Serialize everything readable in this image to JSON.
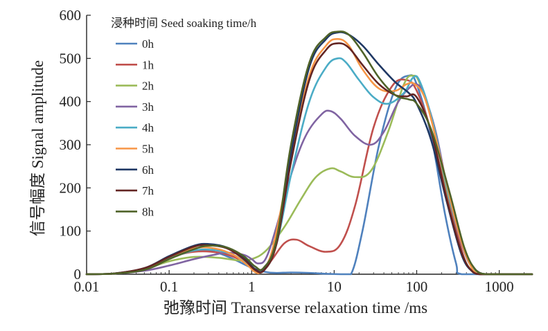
{
  "chart_data": {
    "type": "line",
    "xscale": "log",
    "xlim": [
      0.01,
      2500
    ],
    "ylim": [
      0,
      600
    ],
    "xlabel": "弛豫时间 Transverse relaxation time /ms",
    "ylabel": "信号幅度 Signal amplitude",
    "xticks": [
      0.01,
      0.1,
      1,
      10,
      100,
      1000
    ],
    "xtick_labels": [
      "0.01",
      "0.1",
      "1",
      "10",
      "100",
      "1000"
    ],
    "yticks": [
      0,
      100,
      200,
      300,
      400,
      500,
      600
    ],
    "ytick_labels": [
      "0",
      "100",
      "200",
      "300",
      "400",
      "500",
      "600"
    ],
    "legend_title": "浸种时间 Seed soaking time/h",
    "legend_position": "top-left",
    "grid": false,
    "series": [
      {
        "name": "0h",
        "color": "#4f81bd",
        "points": [
          [
            0.01,
            0
          ],
          [
            0.02,
            1
          ],
          [
            0.05,
            12
          ],
          [
            0.1,
            38
          ],
          [
            0.2,
            55
          ],
          [
            0.35,
            52
          ],
          [
            0.6,
            35
          ],
          [
            1,
            15
          ],
          [
            1.5,
            5
          ],
          [
            2,
            3
          ],
          [
            3,
            4
          ],
          [
            5,
            3
          ],
          [
            8,
            1
          ],
          [
            12,
            0
          ],
          [
            16,
            0
          ],
          [
            22,
            100
          ],
          [
            35,
            300
          ],
          [
            55,
            430
          ],
          [
            80,
            460
          ],
          [
            100,
            440
          ],
          [
            150,
            320
          ],
          [
            220,
            140
          ],
          [
            300,
            25
          ],
          [
            350,
            0
          ],
          [
            1000,
            0
          ],
          [
            2500,
            0
          ]
        ]
      },
      {
        "name": "1h",
        "color": "#c0504d",
        "points": [
          [
            0.01,
            0
          ],
          [
            0.02,
            1
          ],
          [
            0.05,
            12
          ],
          [
            0.1,
            38
          ],
          [
            0.2,
            52
          ],
          [
            0.4,
            50
          ],
          [
            0.7,
            35
          ],
          [
            1,
            15
          ],
          [
            1.3,
            10
          ],
          [
            1.7,
            30
          ],
          [
            2.5,
            72
          ],
          [
            3.5,
            80
          ],
          [
            5,
            65
          ],
          [
            8,
            52
          ],
          [
            12,
            70
          ],
          [
            18,
            160
          ],
          [
            30,
            340
          ],
          [
            50,
            435
          ],
          [
            75,
            450
          ],
          [
            100,
            425
          ],
          [
            150,
            330
          ],
          [
            250,
            160
          ],
          [
            380,
            35
          ],
          [
            500,
            5
          ],
          [
            600,
            0
          ],
          [
            1000,
            0
          ],
          [
            2500,
            0
          ]
        ]
      },
      {
        "name": "2h",
        "color": "#9bbb59",
        "points": [
          [
            0.01,
            0
          ],
          [
            0.02,
            1
          ],
          [
            0.05,
            12
          ],
          [
            0.1,
            30
          ],
          [
            0.2,
            40
          ],
          [
            0.4,
            38
          ],
          [
            0.7,
            32
          ],
          [
            1,
            35
          ],
          [
            1.5,
            55
          ],
          [
            2.5,
            110
          ],
          [
            4,
            175
          ],
          [
            6,
            225
          ],
          [
            9,
            245
          ],
          [
            12,
            238
          ],
          [
            18,
            225
          ],
          [
            28,
            240
          ],
          [
            45,
            330
          ],
          [
            70,
            440
          ],
          [
            90,
            460
          ],
          [
            110,
            440
          ],
          [
            160,
            340
          ],
          [
            250,
            170
          ],
          [
            400,
            40
          ],
          [
            550,
            5
          ],
          [
            700,
            0
          ],
          [
            1000,
            0
          ],
          [
            2500,
            0
          ]
        ]
      },
      {
        "name": "3h",
        "color": "#8064a2",
        "points": [
          [
            0.01,
            0
          ],
          [
            0.02,
            1
          ],
          [
            0.05,
            8
          ],
          [
            0.1,
            20
          ],
          [
            0.2,
            35
          ],
          [
            0.35,
            45
          ],
          [
            0.5,
            50
          ],
          [
            0.8,
            45
          ],
          [
            1,
            35
          ],
          [
            1.2,
            25
          ],
          [
            1.5,
            38
          ],
          [
            2,
            110
          ],
          [
            3,
            230
          ],
          [
            4.5,
            320
          ],
          [
            7,
            370
          ],
          [
            9,
            378
          ],
          [
            12,
            360
          ],
          [
            18,
            320
          ],
          [
            28,
            300
          ],
          [
            40,
            330
          ],
          [
            60,
            400
          ],
          [
            85,
            435
          ],
          [
            100,
            440
          ],
          [
            120,
            420
          ],
          [
            170,
            330
          ],
          [
            260,
            160
          ],
          [
            400,
            40
          ],
          [
            560,
            5
          ],
          [
            700,
            0
          ],
          [
            1000,
            0
          ],
          [
            2500,
            0
          ]
        ]
      },
      {
        "name": "4h",
        "color": "#4bacc6",
        "points": [
          [
            0.01,
            0
          ],
          [
            0.02,
            1
          ],
          [
            0.05,
            12
          ],
          [
            0.1,
            36
          ],
          [
            0.2,
            55
          ],
          [
            0.35,
            56
          ],
          [
            0.6,
            45
          ],
          [
            0.9,
            22
          ],
          [
            1.1,
            8
          ],
          [
            1.4,
            12
          ],
          [
            2,
            70
          ],
          [
            3,
            230
          ],
          [
            5,
            400
          ],
          [
            8,
            480
          ],
          [
            11,
            500
          ],
          [
            14,
            490
          ],
          [
            20,
            450
          ],
          [
            30,
            410
          ],
          [
            45,
            395
          ],
          [
            70,
            420
          ],
          [
            90,
            455
          ],
          [
            110,
            445
          ],
          [
            160,
            345
          ],
          [
            250,
            175
          ],
          [
            400,
            45
          ],
          [
            550,
            5
          ],
          [
            700,
            0
          ],
          [
            1000,
            0
          ],
          [
            2500,
            0
          ]
        ]
      },
      {
        "name": "5h",
        "color": "#f79646",
        "points": [
          [
            0.01,
            0
          ],
          [
            0.02,
            1
          ],
          [
            0.05,
            12
          ],
          [
            0.1,
            40
          ],
          [
            0.2,
            60
          ],
          [
            0.35,
            60
          ],
          [
            0.6,
            45
          ],
          [
            0.9,
            20
          ],
          [
            1.1,
            5
          ],
          [
            1.3,
            5
          ],
          [
            1.8,
            60
          ],
          [
            3,
            270
          ],
          [
            5,
            460
          ],
          [
            8,
            530
          ],
          [
            11,
            545
          ],
          [
            15,
            530
          ],
          [
            22,
            475
          ],
          [
            35,
            430
          ],
          [
            55,
            425
          ],
          [
            75,
            440
          ],
          [
            95,
            440
          ],
          [
            130,
            400
          ],
          [
            200,
            260
          ],
          [
            330,
            90
          ],
          [
            480,
            10
          ],
          [
            600,
            0
          ],
          [
            1000,
            0
          ],
          [
            2500,
            0
          ]
        ]
      },
      {
        "name": "6h",
        "color": "#1f3864",
        "points": [
          [
            0.01,
            0
          ],
          [
            0.02,
            1
          ],
          [
            0.05,
            14
          ],
          [
            0.1,
            42
          ],
          [
            0.2,
            66
          ],
          [
            0.3,
            70
          ],
          [
            0.5,
            62
          ],
          [
            0.8,
            38
          ],
          [
            1.1,
            12
          ],
          [
            1.4,
            10
          ],
          [
            2,
            80
          ],
          [
            3,
            280
          ],
          [
            5,
            480
          ],
          [
            8,
            545
          ],
          [
            11,
            560
          ],
          [
            15,
            555
          ],
          [
            22,
            530
          ],
          [
            35,
            485
          ],
          [
            55,
            445
          ],
          [
            80,
            420
          ],
          [
            100,
            395
          ],
          [
            150,
            310
          ],
          [
            230,
            170
          ],
          [
            350,
            45
          ],
          [
            480,
            5
          ],
          [
            600,
            0
          ],
          [
            1000,
            0
          ],
          [
            2500,
            0
          ]
        ]
      },
      {
        "name": "7h",
        "color": "#632523",
        "points": [
          [
            0.01,
            0
          ],
          [
            0.02,
            1
          ],
          [
            0.05,
            14
          ],
          [
            0.1,
            40
          ],
          [
            0.2,
            64
          ],
          [
            0.3,
            67
          ],
          [
            0.5,
            60
          ],
          [
            0.8,
            35
          ],
          [
            1.1,
            10
          ],
          [
            1.4,
            8
          ],
          [
            2,
            70
          ],
          [
            3,
            260
          ],
          [
            5,
            450
          ],
          [
            8,
            520
          ],
          [
            11,
            535
          ],
          [
            15,
            525
          ],
          [
            22,
            485
          ],
          [
            35,
            440
          ],
          [
            55,
            415
          ],
          [
            75,
            412
          ],
          [
            100,
            410
          ],
          [
            150,
            330
          ],
          [
            230,
            175
          ],
          [
            350,
            50
          ],
          [
            480,
            5
          ],
          [
            600,
            0
          ],
          [
            1000,
            0
          ],
          [
            2500,
            0
          ]
        ]
      },
      {
        "name": "8h",
        "color": "#4f6228",
        "points": [
          [
            0.01,
            0
          ],
          [
            0.02,
            1
          ],
          [
            0.05,
            10
          ],
          [
            0.1,
            35
          ],
          [
            0.2,
            58
          ],
          [
            0.3,
            66
          ],
          [
            0.5,
            62
          ],
          [
            0.8,
            42
          ],
          [
            1.1,
            18
          ],
          [
            1.4,
            15
          ],
          [
            2,
            80
          ],
          [
            3,
            300
          ],
          [
            5,
            490
          ],
          [
            8,
            550
          ],
          [
            11,
            562
          ],
          [
            15,
            555
          ],
          [
            22,
            515
          ],
          [
            35,
            455
          ],
          [
            55,
            415
          ],
          [
            80,
            405
          ],
          [
            100,
            395
          ],
          [
            150,
            335
          ],
          [
            250,
            190
          ],
          [
            380,
            60
          ],
          [
            530,
            8
          ],
          [
            700,
            0
          ],
          [
            1000,
            0
          ],
          [
            2500,
            0
          ]
        ]
      }
    ]
  }
}
